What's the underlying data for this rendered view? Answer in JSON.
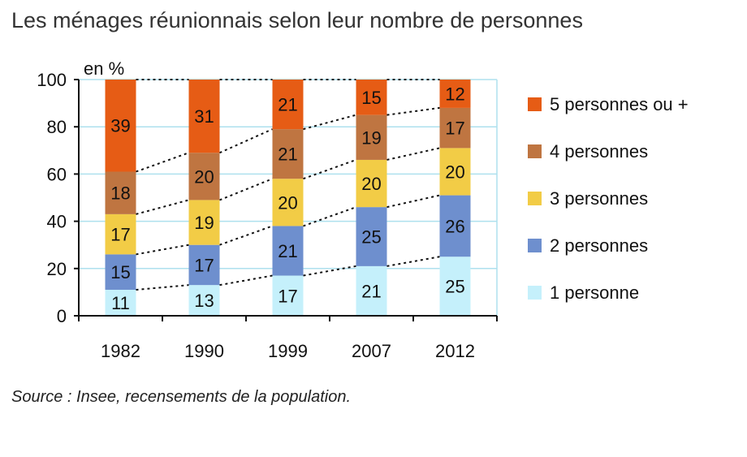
{
  "title": "Les ménages réunionnais selon leur nombre de personnes",
  "source": "Source : Insee, recensements de la population.",
  "chart_data": {
    "type": "bar",
    "stacked": true,
    "unit_label": "en %",
    "categories": [
      "1982",
      "1990",
      "1999",
      "2007",
      "2012"
    ],
    "yticks": [
      "0",
      "20",
      "40",
      "60",
      "80",
      "100"
    ],
    "ylim": [
      0,
      100
    ],
    "grid": true,
    "legend_position": "right",
    "series": [
      {
        "name": "1 personne",
        "color": "#c5f0fb",
        "values": [
          11,
          13,
          17,
          21,
          25
        ]
      },
      {
        "name": "2 personnes",
        "color": "#6e8fce",
        "values": [
          15,
          17,
          21,
          25,
          26
        ]
      },
      {
        "name": "3 personnes",
        "color": "#f2cc46",
        "values": [
          17,
          19,
          20,
          20,
          20
        ]
      },
      {
        "name": "4 personnes",
        "color": "#bf7541",
        "values": [
          18,
          20,
          21,
          19,
          17
        ]
      },
      {
        "name": "5 personnes ou +",
        "color": "#e65c15",
        "values": [
          39,
          31,
          21,
          15,
          12
        ]
      }
    ],
    "legend_order": [
      4,
      3,
      2,
      1,
      0
    ]
  }
}
